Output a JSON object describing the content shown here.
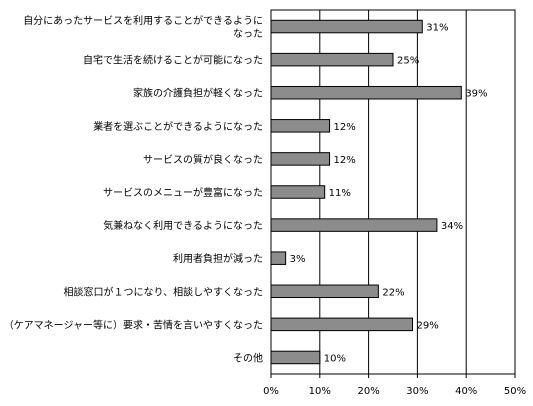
{
  "chart_data": {
    "type": "bar",
    "orientation": "horizontal",
    "title": "",
    "xlabel": "",
    "ylabel": "",
    "xlim": [
      0,
      50
    ],
    "tick_values": [
      0,
      10,
      20,
      30,
      40,
      50
    ],
    "tick_labels": [
      "0%",
      "10%",
      "20%",
      "30%",
      "40%",
      "50%"
    ],
    "categories": [
      [
        "自分にあったサービスを利用することができるように",
        "なった"
      ],
      [
        "自宅で生活を続けることが可能になった"
      ],
      [
        "家族の介護負担が軽くなった"
      ],
      [
        "業者を選ぶことができるようになった"
      ],
      [
        "サービスの質が良くなった"
      ],
      [
        "サービスのメニューが豊富になった"
      ],
      [
        "気兼ねなく利用できるようになった"
      ],
      [
        "利用者負担が減った"
      ],
      [
        "相談窓口が１つになり、相談しやすくなった"
      ],
      [
        "（ケアマネージャー等に）要求・苦情を言いやすくなった"
      ],
      [
        "その他"
      ]
    ],
    "values": [
      31,
      25,
      39,
      12,
      12,
      11,
      34,
      3,
      22,
      29,
      10
    ],
    "data_labels": [
      "31%",
      "25%",
      "39%",
      "12%",
      "12%",
      "11%",
      "34%",
      "3%",
      "22%",
      "29%",
      "10%"
    ],
    "grid": "vertical lines at major ticks",
    "legend": "none",
    "colors": {
      "bar_fill": "#8c8c8c",
      "bar_stroke": "#000000",
      "grid": "#000000"
    }
  }
}
